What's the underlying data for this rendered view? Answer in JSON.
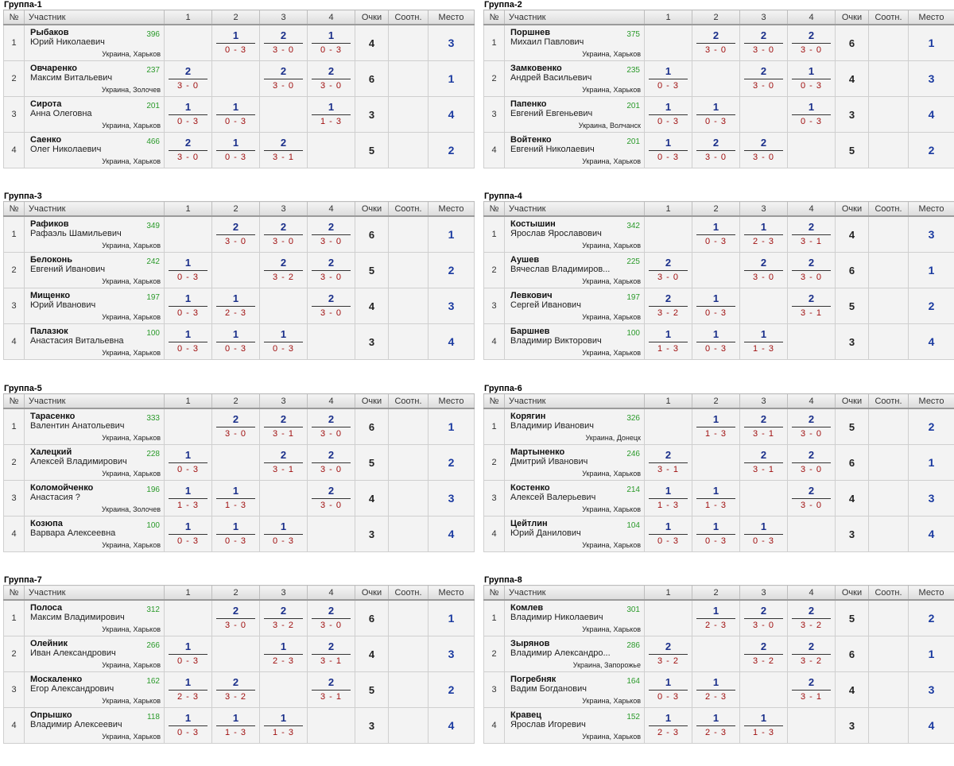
{
  "headers": {
    "num": "№",
    "name": "Участник",
    "c1": "1",
    "c2": "2",
    "c3": "3",
    "c4": "4",
    "points": "Очки",
    "ratio": "Соотн.",
    "place": "Место"
  },
  "groups": [
    {
      "title": "Группа-1",
      "rows": [
        {
          "num": "1",
          "surname": "Рыбаков",
          "given": "Юрий Николаевич",
          "rating": "396",
          "loc": "Украина, Харьков",
          "m": [
            null,
            {
              "p": "1",
              "s": "0 - 3"
            },
            {
              "p": "2",
              "s": "3 - 0"
            },
            {
              "p": "1",
              "s": "0 - 3"
            }
          ],
          "points": "4",
          "place": "3"
        },
        {
          "num": "2",
          "surname": "Овчаренко",
          "given": "Максим Витальевич",
          "rating": "237",
          "loc": "Украина, Золочев",
          "m": [
            {
              "p": "2",
              "s": "3 - 0"
            },
            null,
            {
              "p": "2",
              "s": "3 - 0"
            },
            {
              "p": "2",
              "s": "3 - 0"
            }
          ],
          "points": "6",
          "place": "1"
        },
        {
          "num": "3",
          "surname": "Сирота",
          "given": "Анна Олеговна",
          "rating": "201",
          "loc": "Украина, Харьков",
          "m": [
            {
              "p": "1",
              "s": "0 - 3"
            },
            {
              "p": "1",
              "s": "0 - 3"
            },
            null,
            {
              "p": "1",
              "s": "1 - 3"
            }
          ],
          "points": "3",
          "place": "4"
        },
        {
          "num": "4",
          "surname": "Саенко",
          "given": "Олег Николаевич",
          "rating": "466",
          "loc": "Украина, Харьков",
          "m": [
            {
              "p": "2",
              "s": "3 - 0"
            },
            {
              "p": "1",
              "s": "0 - 3"
            },
            {
              "p": "2",
              "s": "3 - 1"
            },
            null
          ],
          "points": "5",
          "place": "2"
        }
      ]
    },
    {
      "title": "Группа-2",
      "rows": [
        {
          "num": "1",
          "surname": "Поршнев",
          "given": "Михаил Павлович",
          "rating": "375",
          "loc": "Украина, Харьков",
          "m": [
            null,
            {
              "p": "2",
              "s": "3 - 0"
            },
            {
              "p": "2",
              "s": "3 - 0"
            },
            {
              "p": "2",
              "s": "3 - 0"
            }
          ],
          "points": "6",
          "place": "1"
        },
        {
          "num": "2",
          "surname": "Замковенко",
          "given": "Андрей Васильевич",
          "rating": "235",
          "loc": "Украина, Харьков",
          "m": [
            {
              "p": "1",
              "s": "0 - 3"
            },
            null,
            {
              "p": "2",
              "s": "3 - 0"
            },
            {
              "p": "1",
              "s": "0 - 3"
            }
          ],
          "points": "4",
          "place": "3"
        },
        {
          "num": "3",
          "surname": "Папенко",
          "given": "Евгений Евгеньевич",
          "rating": "201",
          "loc": "Украина, Волчанск",
          "m": [
            {
              "p": "1",
              "s": "0 - 3"
            },
            {
              "p": "1",
              "s": "0 - 3"
            },
            null,
            {
              "p": "1",
              "s": "0 - 3"
            }
          ],
          "points": "3",
          "place": "4"
        },
        {
          "num": "4",
          "surname": "Войтенко",
          "given": "Евгений Николаевич",
          "rating": "201",
          "loc": "Украина, Харьков",
          "m": [
            {
              "p": "1",
              "s": "0 - 3"
            },
            {
              "p": "2",
              "s": "3 - 0"
            },
            {
              "p": "2",
              "s": "3 - 0"
            },
            null
          ],
          "points": "5",
          "place": "2"
        }
      ]
    },
    {
      "title": "Группа-3",
      "rows": [
        {
          "num": "1",
          "surname": "Рафиков",
          "given": "Рафаэль Шамильевич",
          "rating": "349",
          "loc": "Украина, Харьков",
          "m": [
            null,
            {
              "p": "2",
              "s": "3 - 0"
            },
            {
              "p": "2",
              "s": "3 - 0"
            },
            {
              "p": "2",
              "s": "3 - 0"
            }
          ],
          "points": "6",
          "place": "1"
        },
        {
          "num": "2",
          "surname": "Белоконь",
          "given": "Евгений Иванович",
          "rating": "242",
          "loc": "Украина, Харьков",
          "m": [
            {
              "p": "1",
              "s": "0 - 3"
            },
            null,
            {
              "p": "2",
              "s": "3 - 2"
            },
            {
              "p": "2",
              "s": "3 - 0"
            }
          ],
          "points": "5",
          "place": "2"
        },
        {
          "num": "3",
          "surname": "Мищенко",
          "given": "Юрий Иванович",
          "rating": "197",
          "loc": "Украина, Харьков",
          "m": [
            {
              "p": "1",
              "s": "0 - 3"
            },
            {
              "p": "1",
              "s": "2 - 3"
            },
            null,
            {
              "p": "2",
              "s": "3 - 0"
            }
          ],
          "points": "4",
          "place": "3"
        },
        {
          "num": "4",
          "surname": "Палазюк",
          "given": "Анастасия Витальевна",
          "rating": "100",
          "loc": "Украина, Харьков",
          "m": [
            {
              "p": "1",
              "s": "0 - 3"
            },
            {
              "p": "1",
              "s": "0 - 3"
            },
            {
              "p": "1",
              "s": "0 - 3"
            },
            null
          ],
          "points": "3",
          "place": "4"
        }
      ]
    },
    {
      "title": "Группа-4",
      "rows": [
        {
          "num": "1",
          "surname": "Костышин",
          "given": "Ярослав Ярославович",
          "rating": "342",
          "loc": "Украина, Харьков",
          "m": [
            null,
            {
              "p": "1",
              "s": "0 - 3"
            },
            {
              "p": "1",
              "s": "2 - 3"
            },
            {
              "p": "2",
              "s": "3 - 1"
            }
          ],
          "points": "4",
          "place": "3"
        },
        {
          "num": "2",
          "surname": "Аушев",
          "given": "Вячеслав Владимиров...",
          "rating": "225",
          "loc": "Украина, Харьков",
          "m": [
            {
              "p": "2",
              "s": "3 - 0"
            },
            null,
            {
              "p": "2",
              "s": "3 - 0"
            },
            {
              "p": "2",
              "s": "3 - 0"
            }
          ],
          "points": "6",
          "place": "1"
        },
        {
          "num": "3",
          "surname": "Левкович",
          "given": "Сергей Иванович",
          "rating": "197",
          "loc": "Украина, Харьков",
          "m": [
            {
              "p": "2",
              "s": "3 - 2"
            },
            {
              "p": "1",
              "s": "0 - 3"
            },
            null,
            {
              "p": "2",
              "s": "3 - 1"
            }
          ],
          "points": "5",
          "place": "2"
        },
        {
          "num": "4",
          "surname": "Баршнев",
          "given": "Владимир Викторович",
          "rating": "100",
          "loc": "Украина, Харьков",
          "m": [
            {
              "p": "1",
              "s": "1 - 3"
            },
            {
              "p": "1",
              "s": "0 - 3"
            },
            {
              "p": "1",
              "s": "1 - 3"
            },
            null
          ],
          "points": "3",
          "place": "4"
        }
      ]
    },
    {
      "title": "Группа-5",
      "rows": [
        {
          "num": "1",
          "surname": "Тарасенко",
          "given": "Валентин Анатольевич",
          "rating": "333",
          "loc": "Украина, Харьков",
          "m": [
            null,
            {
              "p": "2",
              "s": "3 - 0"
            },
            {
              "p": "2",
              "s": "3 - 1"
            },
            {
              "p": "2",
              "s": "3 - 0"
            }
          ],
          "points": "6",
          "place": "1"
        },
        {
          "num": "2",
          "surname": "Халецкий",
          "given": "Алексей Владимирович",
          "rating": "228",
          "loc": "Украина, Харьков",
          "m": [
            {
              "p": "1",
              "s": "0 - 3"
            },
            null,
            {
              "p": "2",
              "s": "3 - 1"
            },
            {
              "p": "2",
              "s": "3 - 0"
            }
          ],
          "points": "5",
          "place": "2"
        },
        {
          "num": "3",
          "surname": "Коломойченко",
          "given": "Анастасия ?",
          "rating": "196",
          "loc": "Украина, Золочев",
          "m": [
            {
              "p": "1",
              "s": "1 - 3"
            },
            {
              "p": "1",
              "s": "1 - 3"
            },
            null,
            {
              "p": "2",
              "s": "3 - 0"
            }
          ],
          "points": "4",
          "place": "3"
        },
        {
          "num": "4",
          "surname": "Козюпа",
          "given": "Варвара Алексеевна",
          "rating": "100",
          "loc": "Украина, Харьков",
          "m": [
            {
              "p": "1",
              "s": "0 - 3"
            },
            {
              "p": "1",
              "s": "0 - 3"
            },
            {
              "p": "1",
              "s": "0 - 3"
            },
            null
          ],
          "points": "3",
          "place": "4"
        }
      ]
    },
    {
      "title": "Группа-6",
      "rows": [
        {
          "num": "1",
          "surname": "Корягин",
          "given": "Владимир Иванович",
          "rating": "326",
          "loc": "Украина, Донецк",
          "m": [
            null,
            {
              "p": "1",
              "s": "1 - 3"
            },
            {
              "p": "2",
              "s": "3 - 1"
            },
            {
              "p": "2",
              "s": "3 - 0"
            }
          ],
          "points": "5",
          "place": "2"
        },
        {
          "num": "2",
          "surname": "Мартыненко",
          "given": "Дмитрий Иванович",
          "rating": "246",
          "loc": "Украина, Харьков",
          "m": [
            {
              "p": "2",
              "s": "3 - 1"
            },
            null,
            {
              "p": "2",
              "s": "3 - 1"
            },
            {
              "p": "2",
              "s": "3 - 0"
            }
          ],
          "points": "6",
          "place": "1"
        },
        {
          "num": "3",
          "surname": "Костенко",
          "given": "Алексей Валерьевич",
          "rating": "214",
          "loc": "Украина, Харьков",
          "m": [
            {
              "p": "1",
              "s": "1 - 3"
            },
            {
              "p": "1",
              "s": "1 - 3"
            },
            null,
            {
              "p": "2",
              "s": "3 - 0"
            }
          ],
          "points": "4",
          "place": "3"
        },
        {
          "num": "4",
          "surname": "Цейтлин",
          "given": "Юрий Данилович",
          "rating": "104",
          "loc": "Украина, Харьков",
          "m": [
            {
              "p": "1",
              "s": "0 - 3"
            },
            {
              "p": "1",
              "s": "0 - 3"
            },
            {
              "p": "1",
              "s": "0 - 3"
            },
            null
          ],
          "points": "3",
          "place": "4"
        }
      ]
    },
    {
      "title": "Группа-7",
      "rows": [
        {
          "num": "1",
          "surname": "Полоса",
          "given": "Максим Владимирович",
          "rating": "312",
          "loc": "Украина, Харьков",
          "m": [
            null,
            {
              "p": "2",
              "s": "3 - 0"
            },
            {
              "p": "2",
              "s": "3 - 2"
            },
            {
              "p": "2",
              "s": "3 - 0"
            }
          ],
          "points": "6",
          "place": "1"
        },
        {
          "num": "2",
          "surname": "Олейник",
          "given": "Иван Александрович",
          "rating": "266",
          "loc": "Украина, Харьков",
          "m": [
            {
              "p": "1",
              "s": "0 - 3"
            },
            null,
            {
              "p": "1",
              "s": "2 - 3"
            },
            {
              "p": "2",
              "s": "3 - 1"
            }
          ],
          "points": "4",
          "place": "3"
        },
        {
          "num": "3",
          "surname": "Москаленко",
          "given": "Егор Александрович",
          "rating": "162",
          "loc": "Украина, Харьков",
          "m": [
            {
              "p": "1",
              "s": "2 - 3"
            },
            {
              "p": "2",
              "s": "3 - 2"
            },
            null,
            {
              "p": "2",
              "s": "3 - 1"
            }
          ],
          "points": "5",
          "place": "2"
        },
        {
          "num": "4",
          "surname": "Опрышко",
          "given": "Владимир Алексеевич",
          "rating": "118",
          "loc": "Украина, Харьков",
          "m": [
            {
              "p": "1",
              "s": "0 - 3"
            },
            {
              "p": "1",
              "s": "1 - 3"
            },
            {
              "p": "1",
              "s": "1 - 3"
            },
            null
          ],
          "points": "3",
          "place": "4"
        }
      ]
    },
    {
      "title": "Группа-8",
      "rows": [
        {
          "num": "1",
          "surname": "Комлев",
          "given": "Владимир Николаевич",
          "rating": "301",
          "loc": "Украина, Харьков",
          "m": [
            null,
            {
              "p": "1",
              "s": "2 - 3"
            },
            {
              "p": "2",
              "s": "3 - 0"
            },
            {
              "p": "2",
              "s": "3 - 2"
            }
          ],
          "points": "5",
          "place": "2"
        },
        {
          "num": "2",
          "surname": "Зырянов",
          "given": "Владимир Александро...",
          "rating": "286",
          "loc": "Украина, Запорожье",
          "m": [
            {
              "p": "2",
              "s": "3 - 2"
            },
            null,
            {
              "p": "2",
              "s": "3 - 2"
            },
            {
              "p": "2",
              "s": "3 - 2"
            }
          ],
          "points": "6",
          "place": "1"
        },
        {
          "num": "3",
          "surname": "Погребняк",
          "given": "Вадим Богданович",
          "rating": "164",
          "loc": "Украина, Харьков",
          "m": [
            {
              "p": "1",
              "s": "0 - 3"
            },
            {
              "p": "1",
              "s": "2 - 3"
            },
            null,
            {
              "p": "2",
              "s": "3 - 1"
            }
          ],
          "points": "4",
          "place": "3"
        },
        {
          "num": "4",
          "surname": "Кравец",
          "given": "Ярослав Игоревич",
          "rating": "152",
          "loc": "Украина, Харьков",
          "m": [
            {
              "p": "1",
              "s": "2 - 3"
            },
            {
              "p": "1",
              "s": "2 - 3"
            },
            {
              "p": "1",
              "s": "1 - 3"
            },
            null
          ],
          "points": "3",
          "place": "4"
        }
      ]
    }
  ]
}
